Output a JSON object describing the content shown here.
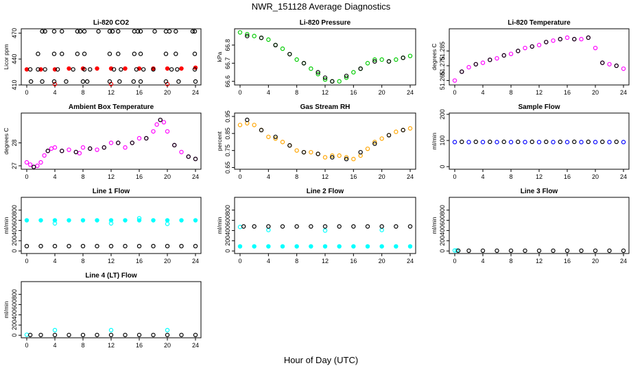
{
  "figure": {
    "title": "NWR_151128  Average Diagnostics",
    "xlabel": "Hour of Day (UTC)"
  },
  "colors": {
    "black": "#000000",
    "red": "#ff0000",
    "green": "#00cc00",
    "magenta": "#ff00ff",
    "orange": "#ffa500",
    "blue": "#0000ff",
    "cyan": "#00ffff"
  },
  "chart_data": [
    {
      "type": "scatter",
      "title": "Li-820 CO2",
      "ylabel": "Licor ppm",
      "xlim": [
        0,
        24
      ],
      "ylim": [
        410,
        475
      ],
      "yticks": [
        410,
        440,
        470
      ],
      "xticks": [
        0,
        4,
        8,
        12,
        16,
        20,
        24
      ],
      "series": [
        {
          "color": "red",
          "marker": "filled",
          "x": [
            0,
            2,
            4,
            6,
            8,
            10,
            12,
            14,
            16,
            18,
            20,
            22,
            24
          ],
          "y": [
            428,
            428,
            428,
            429,
            429,
            429,
            429,
            429,
            429,
            429,
            429,
            429,
            430
          ]
        },
        {
          "color": "red",
          "marker": "open",
          "x": [
            4,
            12,
            20
          ],
          "y": [
            411,
            411,
            411
          ]
        },
        {
          "color": "black",
          "marker": "open",
          "x": [
            2.2,
            2.6,
            3.9,
            5.0,
            7.2,
            7.6,
            8.2,
            10.2,
            11.8,
            12.2,
            13.0,
            15.3,
            15.8,
            16.2,
            18.2,
            19.8,
            20.3,
            21.2,
            23.6,
            23.9
          ],
          "y": [
            472,
            472,
            472,
            472,
            472,
            472,
            472,
            472,
            472,
            472,
            472,
            472,
            472,
            472,
            472,
            472,
            472,
            472,
            472,
            472
          ]
        },
        {
          "color": "black",
          "marker": "open",
          "x": [
            1.6,
            3.9,
            5.0,
            7.2,
            8.2,
            11.8,
            13.0,
            15.3,
            16.2,
            19.8,
            21.2,
            23.9
          ],
          "y": [
            446,
            446,
            446,
            446,
            446,
            446,
            446,
            446,
            446,
            446,
            446,
            446
          ]
        },
        {
          "color": "black",
          "marker": "open",
          "x": [
            0.5,
            1.6,
            2.6,
            4.4,
            6.6,
            8.2,
            9.0,
            12.4,
            13.4,
            15.6,
            16.6,
            18.0,
            20.6,
            21.4,
            23.9
          ],
          "y": [
            428,
            428,
            428,
            428,
            428,
            428,
            428,
            428,
            428,
            428,
            428,
            428,
            428,
            428,
            428
          ]
        },
        {
          "color": "black",
          "marker": "open",
          "x": [
            0.6,
            2.2,
            3.9,
            5.6,
            8.0,
            8.6,
            11.8,
            13.2,
            15.2,
            16.2,
            19.8,
            21.6,
            24.0
          ],
          "y": [
            414,
            414,
            414,
            414,
            414,
            414,
            414,
            414,
            414,
            414,
            414,
            414,
            414
          ]
        }
      ]
    },
    {
      "type": "scatter",
      "title": "Li-820 Pressure",
      "ylabel": "kPa",
      "xlim": [
        0,
        24
      ],
      "ylim": [
        66.58,
        66.89
      ],
      "yticks": [
        66.6,
        66.7,
        66.8
      ],
      "xticks": [
        0,
        4,
        8,
        12,
        16,
        20,
        24
      ],
      "series": [
        {
          "color": "green",
          "marker": "open",
          "x": [
            0,
            1,
            2,
            3,
            4,
            5,
            6,
            7,
            8,
            9,
            10,
            11,
            12,
            13,
            14,
            15,
            16,
            17,
            18,
            19,
            20,
            21,
            22,
            23,
            24
          ],
          "y": [
            66.87,
            66.86,
            66.85,
            66.84,
            66.83,
            66.8,
            66.78,
            66.75,
            66.72,
            66.7,
            66.67,
            66.64,
            66.61,
            66.6,
            66.6,
            66.62,
            66.65,
            66.67,
            66.7,
            66.72,
            66.72,
            66.71,
            66.72,
            66.73,
            66.74
          ]
        },
        {
          "color": "black",
          "marker": "open",
          "x": [
            1,
            3,
            5,
            7,
            9,
            11,
            12,
            13,
            15,
            17,
            19,
            21,
            23
          ],
          "y": [
            66.85,
            66.84,
            66.8,
            66.75,
            66.7,
            66.65,
            66.62,
            66.6,
            66.63,
            66.67,
            66.71,
            66.71,
            66.73
          ]
        }
      ]
    },
    {
      "type": "scatter",
      "title": "Li-820 Temperature",
      "ylabel": "degrees C",
      "xlim": [
        0,
        24
      ],
      "ylim": [
        51.262,
        51.3
      ],
      "yticks": [
        51.265,
        51.275,
        51.285
      ],
      "xticks": [
        0,
        4,
        8,
        12,
        16,
        20,
        24
      ],
      "series": [
        {
          "color": "magenta",
          "marker": "open",
          "x": [
            0,
            1,
            2,
            3,
            4,
            5,
            6,
            7,
            8,
            9,
            10,
            11,
            12,
            13,
            14,
            15,
            16,
            17,
            18,
            19,
            20,
            21,
            22,
            23,
            24
          ],
          "y": [
            51.265,
            51.271,
            51.274,
            51.276,
            51.277,
            51.279,
            51.28,
            51.282,
            51.283,
            51.285,
            51.287,
            51.288,
            51.289,
            51.291,
            51.292,
            51.293,
            51.294,
            51.293,
            51.293,
            51.294,
            51.287,
            51.277,
            51.276,
            51.275,
            51.273
          ]
        },
        {
          "color": "black",
          "marker": "open",
          "x": [
            1,
            3,
            5,
            7,
            9,
            11,
            13,
            15,
            17,
            19,
            21,
            23
          ],
          "y": [
            51.271,
            51.276,
            51.279,
            51.282,
            51.285,
            51.288,
            51.291,
            51.293,
            51.293,
            51.294,
            51.277,
            51.275
          ]
        }
      ]
    },
    {
      "type": "scatter",
      "title": "Ambient Box Temperature",
      "ylabel": "degrees C",
      "xlim": [
        0,
        24
      ],
      "ylim": [
        26.85,
        29.3
      ],
      "yticks": [
        27.0,
        28.0
      ],
      "xticks": [
        0,
        4,
        8,
        12,
        16,
        20,
        24
      ],
      "series": [
        {
          "color": "magenta",
          "marker": "open",
          "x": [
            0,
            0.5,
            1,
            1.5,
            2,
            2.5,
            3,
            3.5,
            4,
            5,
            6,
            7,
            7.5,
            8,
            9,
            10,
            11,
            12,
            13,
            14,
            15,
            16,
            17,
            18,
            18.5,
            19,
            19.5,
            20,
            21,
            22,
            23,
            24
          ],
          "y": [
            27.15,
            27.05,
            26.95,
            27.0,
            27.15,
            27.45,
            27.65,
            27.75,
            27.8,
            27.65,
            27.7,
            27.6,
            27.55,
            27.8,
            27.75,
            27.7,
            27.8,
            28.0,
            28.0,
            27.8,
            28.0,
            28.2,
            28.2,
            28.5,
            28.8,
            29.0,
            28.9,
            28.5,
            27.9,
            27.6,
            27.4,
            27.3
          ]
        },
        {
          "color": "black",
          "marker": "open",
          "x": [
            1,
            3,
            5,
            7,
            9,
            11,
            13,
            15,
            17,
            19,
            21,
            23,
            24
          ],
          "y": [
            26.95,
            27.65,
            27.65,
            27.6,
            27.75,
            27.8,
            28.0,
            28.0,
            28.2,
            29.0,
            27.9,
            27.4,
            27.3
          ]
        }
      ]
    },
    {
      "type": "scatter",
      "title": "Gas Stream RH",
      "ylabel": "percent",
      "xlim": [
        0,
        24
      ],
      "ylim": [
        0.64,
        0.97
      ],
      "yticks": [
        0.65,
        0.75,
        0.85,
        0.95
      ],
      "xticks": [
        0,
        4,
        8,
        12,
        16,
        20,
        24
      ],
      "series": [
        {
          "color": "orange",
          "marker": "open",
          "x": [
            0,
            1,
            2,
            3,
            4,
            5,
            6,
            7,
            8,
            9,
            10,
            11,
            12,
            13,
            14,
            15,
            16,
            17,
            18,
            19,
            20,
            21,
            22,
            23,
            24
          ],
          "y": [
            0.9,
            0.91,
            0.9,
            0.87,
            0.83,
            0.82,
            0.8,
            0.78,
            0.75,
            0.74,
            0.74,
            0.73,
            0.71,
            0.72,
            0.72,
            0.71,
            0.7,
            0.72,
            0.76,
            0.8,
            0.82,
            0.84,
            0.86,
            0.87,
            0.88
          ]
        },
        {
          "color": "black",
          "marker": "open",
          "x": [
            1,
            3,
            5,
            7,
            9,
            11,
            13,
            15,
            17,
            19,
            21,
            23
          ],
          "y": [
            0.93,
            0.87,
            0.83,
            0.78,
            0.74,
            0.73,
            0.71,
            0.7,
            0.74,
            0.79,
            0.84,
            0.87
          ]
        }
      ]
    },
    {
      "type": "scatter",
      "title": "Sample Flow",
      "ylabel": "ml/min",
      "xlim": [
        0,
        24
      ],
      "ylim": [
        -10,
        205
      ],
      "yticks": [
        0,
        100,
        200
      ],
      "xticks": [
        0,
        4,
        8,
        12,
        16,
        20,
        24
      ],
      "series": [
        {
          "color": "blue",
          "marker": "open",
          "x": [
            0,
            2,
            4,
            6,
            8,
            10,
            12,
            14,
            16,
            18,
            20,
            22,
            24
          ],
          "y": [
            94,
            94,
            94,
            94,
            94,
            94,
            94,
            94,
            94,
            94,
            94,
            94,
            94
          ]
        },
        {
          "color": "black",
          "marker": "open",
          "x": [
            1,
            3,
            5,
            7,
            9,
            11,
            13,
            15,
            17,
            19,
            21,
            23
          ],
          "y": [
            95,
            95,
            95,
            95,
            95,
            95,
            95,
            95,
            95,
            95,
            95,
            95
          ]
        }
      ]
    },
    {
      "type": "scatter",
      "title": "Line 1 Flow",
      "ylabel": "ml/min",
      "xlim": [
        0,
        24
      ],
      "ylim": [
        -50,
        1050
      ],
      "yticks": [
        0,
        200,
        400,
        600,
        800
      ],
      "xticks": [
        0,
        4,
        8,
        12,
        16,
        20,
        24
      ],
      "series": [
        {
          "color": "cyan",
          "marker": "filled",
          "x": [
            0,
            2,
            4,
            6,
            8,
            10,
            12,
            14,
            16,
            18,
            20,
            22,
            24
          ],
          "y": [
            600,
            600,
            600,
            600,
            600,
            600,
            600,
            600,
            600,
            600,
            600,
            600,
            600
          ]
        },
        {
          "color": "cyan",
          "marker": "open",
          "x": [
            4,
            12,
            16,
            20
          ],
          "y": [
            540,
            540,
            640,
            530
          ]
        },
        {
          "color": "black",
          "marker": "open",
          "x": [
            0,
            2,
            4,
            6,
            8,
            10,
            12,
            14,
            16,
            18,
            20,
            22,
            24
          ],
          "y": [
            95,
            95,
            95,
            95,
            95,
            95,
            95,
            95,
            95,
            95,
            95,
            95,
            95
          ]
        }
      ]
    },
    {
      "type": "scatter",
      "title": "Line 2 Flow",
      "ylabel": "ml/min",
      "xlim": [
        0,
        24
      ],
      "ylim": [
        -50,
        1050
      ],
      "yticks": [
        0,
        200,
        400,
        600,
        800
      ],
      "xticks": [
        0,
        4,
        8,
        12,
        16,
        20,
        24
      ],
      "series": [
        {
          "color": "cyan",
          "marker": "filled",
          "x": [
            0,
            2,
            4,
            6,
            8,
            10,
            12,
            14,
            16,
            18,
            20,
            22,
            24
          ],
          "y": [
            90,
            90,
            90,
            90,
            90,
            90,
            90,
            90,
            90,
            90,
            90,
            90,
            90
          ]
        },
        {
          "color": "cyan",
          "marker": "open",
          "x": [
            0,
            4,
            12,
            20
          ],
          "y": [
            470,
            410,
            400,
            410
          ]
        },
        {
          "color": "black",
          "marker": "open",
          "x": [
            0.5,
            2,
            4,
            6,
            8,
            10,
            12,
            14,
            16,
            18,
            20,
            22,
            24
          ],
          "y": [
            480,
            480,
            480,
            480,
            480,
            480,
            480,
            480,
            480,
            480,
            480,
            480,
            480
          ]
        }
      ]
    },
    {
      "type": "scatter",
      "title": "Line 3 Flow",
      "ylabel": "ml/min",
      "xlim": [
        0,
        24
      ],
      "ylim": [
        -50,
        1050
      ],
      "yticks": [
        0,
        200,
        400,
        600,
        800
      ],
      "xticks": [
        0,
        4,
        8,
        12,
        16,
        20,
        24
      ],
      "series": [
        {
          "color": "cyan",
          "marker": "open",
          "x": [
            0,
            0.3
          ],
          "y": [
            10,
            10
          ]
        },
        {
          "color": "black",
          "marker": "open",
          "x": [
            0.5,
            2,
            4,
            6,
            8,
            10,
            12,
            14,
            16,
            18,
            20,
            22,
            24
          ],
          "y": [
            5,
            5,
            5,
            5,
            5,
            5,
            5,
            5,
            5,
            5,
            5,
            5,
            5
          ]
        }
      ]
    },
    {
      "type": "scatter",
      "title": "Line 4 (LT) Flow",
      "ylabel": "ml/min",
      "xlim": [
        0,
        24
      ],
      "ylim": [
        -50,
        1050
      ],
      "yticks": [
        0,
        200,
        400,
        600,
        800
      ],
      "xticks": [
        0,
        4,
        8,
        12,
        16,
        20,
        24
      ],
      "series": [
        {
          "color": "cyan",
          "marker": "open",
          "x": [
            0,
            4,
            12,
            20
          ],
          "y": [
            10,
            100,
            100,
            100
          ]
        },
        {
          "color": "black",
          "marker": "open",
          "x": [
            0.5,
            2,
            4,
            6,
            8,
            10,
            12,
            14,
            16,
            18,
            20,
            22,
            24
          ],
          "y": [
            5,
            5,
            5,
            5,
            5,
            5,
            5,
            5,
            5,
            5,
            5,
            5,
            5
          ]
        }
      ]
    }
  ]
}
